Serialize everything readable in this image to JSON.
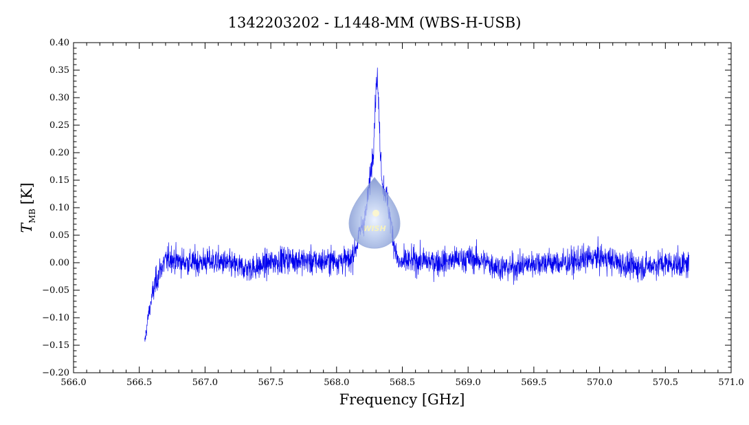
{
  "chart_data": {
    "type": "line",
    "title": "1342203202 - L1448-MM (WBS-H-USB)",
    "xlabel": "Frequency [GHz]",
    "ylabel_main": "T",
    "ylabel_sub": "MB",
    "ylabel_unit": "[K]",
    "xlim": [
      566.0,
      571.0
    ],
    "ylim": [
      -0.2,
      0.4
    ],
    "x_ticks": [
      "566.0",
      "566.5",
      "567.0",
      "567.5",
      "568.0",
      "568.5",
      "569.0",
      "569.5",
      "570.0",
      "570.5",
      "571.0"
    ],
    "y_ticks": [
      "-0.20",
      "-0.15",
      "-0.10",
      "-0.05",
      "0.00",
      "0.05",
      "0.10",
      "0.15",
      "0.20",
      "0.25",
      "0.30",
      "0.35",
      "0.40"
    ],
    "grid": false,
    "series": [
      {
        "color": "#0000ee",
        "x_range": [
          566.54,
          570.68
        ],
        "features": {
          "edge_rise": {
            "x": [
              566.54,
              566.57,
              566.6,
              566.63,
              566.66,
              566.7,
              566.75
            ],
            "y": [
              -0.15,
              -0.1,
              -0.065,
              -0.04,
              -0.02,
              -0.005,
              0.005
            ]
          },
          "baseline_level": 0.0,
          "noise_rms": 0.012,
          "emission_line": {
            "x": [
              568.1,
              568.15,
              568.19,
              568.22,
              568.25,
              568.28,
              568.3,
              568.31,
              568.33,
              568.35,
              568.37,
              568.4,
              568.43,
              568.47
            ],
            "y": [
              0.0,
              0.03,
              0.07,
              0.09,
              0.15,
              0.22,
              0.33,
              0.35,
              0.23,
              0.15,
              0.14,
              0.1,
              0.05,
              0.0
            ]
          }
        }
      }
    ]
  },
  "logo": {
    "text": "WISH",
    "icon": "wish-droplet-logo"
  }
}
